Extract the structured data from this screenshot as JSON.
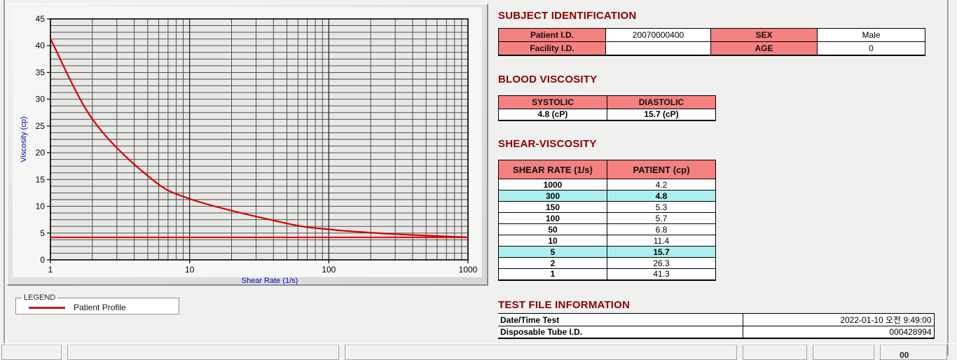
{
  "chart_data": {
    "type": "line",
    "title": "",
    "xlabel": "Shear Rate (1/s)",
    "ylabel": "Viscosity (cp)",
    "x_scale": "log",
    "xlim": [
      1,
      1000
    ],
    "ylim": [
      0,
      45
    ],
    "x_ticks": [
      1,
      10,
      100,
      1000
    ],
    "y_ticks": [
      0,
      5,
      10,
      15,
      20,
      25,
      30,
      35,
      40,
      45
    ],
    "y_minor_step": 1.25,
    "grid": "on",
    "legend_position": "below-left",
    "series": [
      {
        "name": "Patient Profile",
        "color": "#d40000",
        "x": [
          1,
          2,
          5,
          10,
          50,
          100,
          150,
          300,
          1000
        ],
        "y": [
          41.3,
          26.3,
          15.7,
          11.4,
          6.8,
          5.7,
          5.3,
          4.8,
          4.2
        ]
      }
    ],
    "reference_line": {
      "y": 4.2,
      "color": "#e00000"
    }
  },
  "legend": {
    "title": "LEGEND",
    "items": [
      {
        "label": "Patient Profile",
        "color": "#b32020"
      }
    ]
  },
  "sections": {
    "subject_identification": {
      "title": "SUBJECT IDENTIFICATION",
      "rows": [
        {
          "label1": "Patient I.D.",
          "value1": "20070000400",
          "label2": "SEX",
          "value2": "Male"
        },
        {
          "label1": "Facility I.D.",
          "value1": "",
          "label2": "AGE",
          "value2": "0"
        }
      ]
    },
    "blood_viscosity": {
      "title": "BLOOD VISCOSITY",
      "headers": [
        "SYSTOLIC",
        "DIASTOLIC"
      ],
      "values": [
        "4.8 (cP)",
        "15.7 (cP)"
      ]
    },
    "shear_viscosity": {
      "title": "SHEAR-VISCOSITY",
      "headers": [
        "SHEAR RATE (1/s)",
        "PATIENT (cp)"
      ],
      "rows": [
        {
          "rate": "1000",
          "patient": "4.2",
          "highlight": false
        },
        {
          "rate": "300",
          "patient": "4.8",
          "highlight": true
        },
        {
          "rate": "150",
          "patient": "5.3",
          "highlight": false
        },
        {
          "rate": "100",
          "patient": "5.7",
          "highlight": false
        },
        {
          "rate": "50",
          "patient": "6.8",
          "highlight": false
        },
        {
          "rate": "10",
          "patient": "11.4",
          "highlight": false
        },
        {
          "rate": "5",
          "patient": "15.7",
          "highlight": true
        },
        {
          "rate": "2",
          "patient": "26.3",
          "highlight": false
        },
        {
          "rate": "1",
          "patient": "41.3",
          "highlight": false
        }
      ]
    },
    "test_file_information": {
      "title": "TEST FILE INFORMATION",
      "rows": [
        {
          "label": "Date/Time Test",
          "value": "2022-01-10  오전 9:49:00"
        },
        {
          "label": "Disposable Tube I.D.",
          "value": "000428994"
        }
      ]
    }
  },
  "bottom_strip": {
    "partial_text": "00"
  },
  "colors": {
    "header_pink": "#f58080",
    "highlight_cyan": "#aeeeee",
    "section_title_red": "#8b0000",
    "axis_label_blue": "#0000bb",
    "curve_red": "#d40000"
  }
}
